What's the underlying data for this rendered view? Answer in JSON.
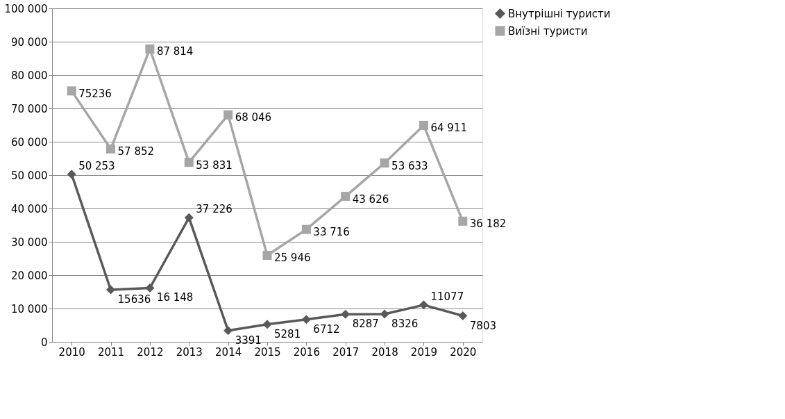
{
  "chart_data": {
    "type": "line",
    "categories": [
      "2010",
      "2011",
      "2012",
      "2013",
      "2014",
      "2015",
      "2016",
      "2017",
      "2018",
      "2019",
      "2020"
    ],
    "series": [
      {
        "name": "Внутрішні туристи",
        "color": "#595959",
        "marker": "diamond",
        "values": [
          50253,
          15636,
          16148,
          37226,
          3391,
          5281,
          6712,
          8287,
          8326,
          11077,
          7803
        ],
        "value_labels": [
          "50 253",
          "15636",
          "16 148",
          "37 226",
          "3391",
          "5281",
          "6712",
          "8287",
          "8326",
          "11077",
          "7803"
        ]
      },
      {
        "name": "Виїзні туристи",
        "color": "#a6a6a6",
        "marker": "square",
        "values": [
          75236,
          57852,
          87814,
          53831,
          68046,
          25946,
          33716,
          43626,
          53633,
          64911,
          36182
        ],
        "value_labels": [
          "75236",
          "57 852",
          "87 814",
          "53 831",
          "68 046",
          "25 946",
          "33 716",
          "43 626",
          "53 633",
          "64 911",
          "36 182"
        ]
      }
    ],
    "ylim": [
      0,
      100000
    ],
    "yticks": [
      0,
      {
        "value": 10000,
        "label": "10 000"
      },
      {
        "value": 20000,
        "label": "20 000"
      },
      {
        "value": 30000,
        "label": "30 000"
      },
      {
        "value": 40000,
        "label": "40 000"
      },
      {
        "value": 50000,
        "label": "50 000"
      },
      {
        "value": 60000,
        "label": "60 000"
      },
      {
        "value": 70000,
        "label": "70 000"
      },
      {
        "value": 80000,
        "label": "80 000"
      },
      {
        "value": 90000,
        "label": "90 000"
      },
      {
        "value": 100000,
        "label": "100 000"
      }
    ],
    "grid": "y",
    "legend": "right",
    "line_style": "solid"
  }
}
